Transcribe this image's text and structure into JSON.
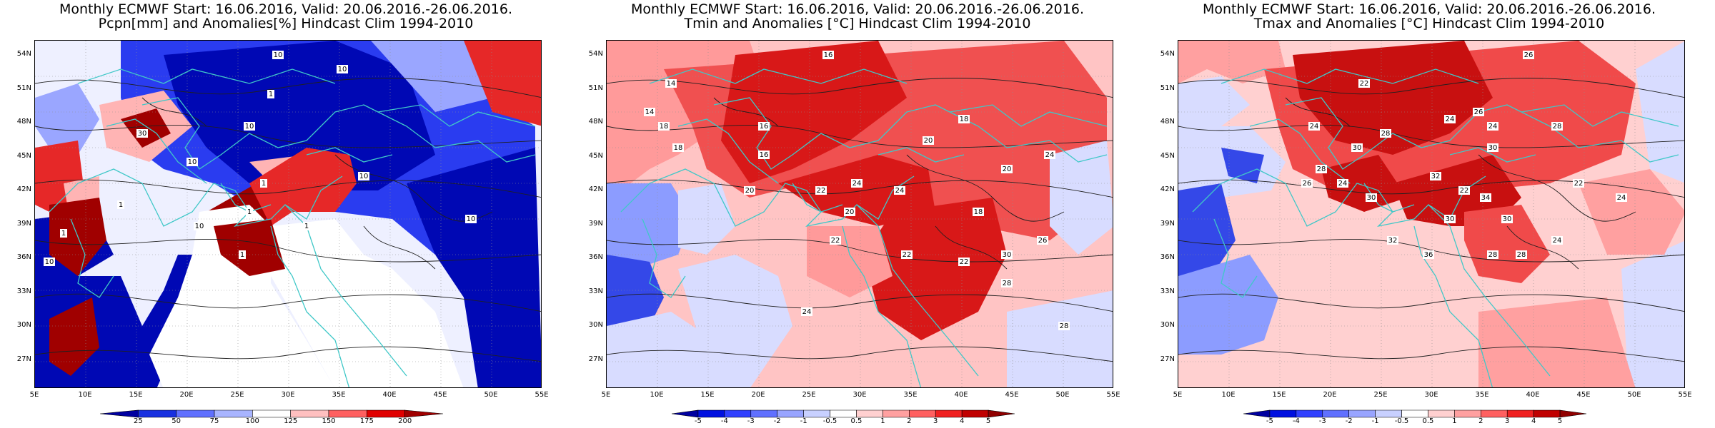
{
  "panels": [
    {
      "title_line1": "Monthly ECMWF Start: 16.06.2016, Valid: 20.06.2016.-26.06.2016.",
      "title_line2": "Pcpn[mm] and Anomalies[%] Hindcast Clim 1994-2010",
      "colors": {
        "bg": "#eef0ff",
        "light": "#9aa6ff",
        "mid": "#2a3cf0",
        "dark": "#0008b4",
        "warm1": "#ffb4b4",
        "warm2": "#e62828",
        "warm3": "#a00000",
        "land": "#ffffff"
      },
      "colorbar_labels": [
        "25",
        "50",
        "75",
        "100",
        "125",
        "150",
        "175",
        "200"
      ],
      "colorbar_colors": [
        "#0000a0",
        "#1830e0",
        "#6070ff",
        "#a8b4ff",
        "#ffffff",
        "#ffc0c0",
        "#ff6060",
        "#e00000",
        "#a00000"
      ],
      "contour_labels": [
        "10",
        "10",
        "1",
        "10",
        "30",
        "10",
        "10",
        "1",
        "1",
        "10",
        "1",
        "1",
        "1",
        "10",
        "10",
        "1"
      ]
    },
    {
      "title_line1": "Monthly ECMWF Start: 16.06.2016, Valid: 20.06.2016.-26.06.2016.",
      "title_line2": "Tmin and Anomalies [°C] Hindcast Clim 1994-2010",
      "colors": {
        "bg": "#ffc4c4",
        "light": "#ff9a9a",
        "mid": "#f05050",
        "dark": "#d81818",
        "cool1": "#d8dcff",
        "cool2": "#8c9cff",
        "cool3": "#3448e8",
        "land": "#ffffff"
      },
      "colorbar_labels": [
        "-5",
        "-4",
        "-3",
        "-2",
        "-1",
        "-0.5",
        "0.5",
        "1",
        "2",
        "3",
        "4",
        "5"
      ],
      "colorbar_colors": [
        "#0000a0",
        "#0010e0",
        "#3040ff",
        "#6070ff",
        "#98a4ff",
        "#c8d0ff",
        "#ffffff",
        "#ffd0d0",
        "#ffa0a0",
        "#ff6060",
        "#f02020",
        "#c00000",
        "#900000"
      ],
      "contour_labels": [
        "14",
        "16",
        "16",
        "18",
        "14",
        "18",
        "18",
        "20",
        "16",
        "20",
        "22",
        "20",
        "24",
        "22",
        "24",
        "18",
        "20",
        "24",
        "26",
        "30",
        "22",
        "22",
        "24",
        "28",
        "28"
      ]
    },
    {
      "title_line1": "Monthly ECMWF Start: 16.06.2016, Valid: 20.06.2016.-26.06.2016.",
      "title_line2": "Tmax and Anomalies [°C] Hindcast Clim 1994-2010",
      "colors": {
        "bg": "#ffd0d0",
        "light": "#ffa0a0",
        "mid": "#f04a4a",
        "dark": "#c81010",
        "cool1": "#d8dcff",
        "cool2": "#8c9cff",
        "cool3": "#3448e8",
        "land": "#ffffff"
      },
      "colorbar_labels": [
        "-5",
        "-4",
        "-3",
        "-2",
        "-1",
        "-0.5",
        "0.5",
        "1",
        "2",
        "3",
        "4",
        "5"
      ],
      "colorbar_colors": [
        "#0000a0",
        "#0010e0",
        "#3040ff",
        "#6070ff",
        "#98a4ff",
        "#c8d0ff",
        "#ffffff",
        "#ffd0d0",
        "#ffa0a0",
        "#ff6060",
        "#f02020",
        "#c00000",
        "#900000"
      ],
      "contour_labels": [
        "26",
        "24",
        "22",
        "24",
        "28",
        "24",
        "26",
        "30",
        "28",
        "24",
        "30",
        "32",
        "22",
        "26",
        "28",
        "30",
        "34",
        "30",
        "24",
        "28",
        "32",
        "36",
        "30",
        "28",
        "22",
        "24"
      ]
    }
  ],
  "lat_labels": [
    "54N",
    "51N",
    "48N",
    "45N",
    "42N",
    "39N",
    "36N",
    "33N",
    "30N",
    "27N"
  ],
  "lon_labels": [
    "5E",
    "10E",
    "15E",
    "20E",
    "25E",
    "30E",
    "35E",
    "40E",
    "45E",
    "50E",
    "55E"
  ],
  "coast_color": "#40c8c8"
}
